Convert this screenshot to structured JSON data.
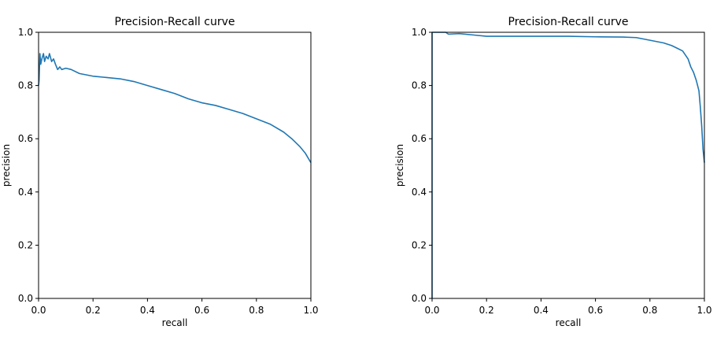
{
  "chart_data": [
    {
      "type": "line",
      "title": "Precision-Recall curve",
      "xlabel": "recall",
      "ylabel": "precision",
      "xlim": [
        0.0,
        1.0
      ],
      "ylim": [
        0.0,
        1.0
      ],
      "xticks": [
        "0.0",
        "0.2",
        "0.4",
        "0.6",
        "0.8",
        "1.0"
      ],
      "yticks": [
        "0.0",
        "0.2",
        "0.4",
        "0.6",
        "0.8",
        "1.0"
      ],
      "grid": false,
      "color": "#1f77b4",
      "series": [
        {
          "x": [
            0.0,
            0.002,
            0.005,
            0.008,
            0.012,
            0.018,
            0.022,
            0.028,
            0.035,
            0.04,
            0.048,
            0.055,
            0.062,
            0.07,
            0.078,
            0.085,
            0.1,
            0.12,
            0.15,
            0.2,
            0.25,
            0.3,
            0.35,
            0.4,
            0.45,
            0.5,
            0.55,
            0.6,
            0.65,
            0.7,
            0.75,
            0.8,
            0.85,
            0.9,
            0.93,
            0.96,
            0.98,
            1.0
          ],
          "y": [
            0.8,
            0.82,
            0.92,
            0.88,
            0.9,
            0.92,
            0.89,
            0.91,
            0.9,
            0.92,
            0.89,
            0.9,
            0.88,
            0.86,
            0.87,
            0.86,
            0.865,
            0.86,
            0.845,
            0.835,
            0.83,
            0.825,
            0.815,
            0.8,
            0.785,
            0.77,
            0.75,
            0.735,
            0.725,
            0.71,
            0.695,
            0.675,
            0.655,
            0.625,
            0.6,
            0.57,
            0.545,
            0.51
          ]
        }
      ]
    },
    {
      "type": "line",
      "title": "Precision-Recall curve",
      "xlabel": "recall",
      "ylabel": "precision",
      "xlim": [
        0.0,
        1.0
      ],
      "ylim": [
        0.0,
        1.0
      ],
      "xticks": [
        "0.0",
        "0.2",
        "0.4",
        "0.6",
        "0.8",
        "1.0"
      ],
      "yticks": [
        "0.0",
        "0.2",
        "0.4",
        "0.6",
        "0.8",
        "1.0"
      ],
      "grid": false,
      "color": "#1f77b4",
      "series": [
        {
          "x": [
            0.0,
            0.0,
            0.01,
            0.03,
            0.05,
            0.06,
            0.1,
            0.15,
            0.2,
            0.3,
            0.4,
            0.5,
            0.6,
            0.7,
            0.75,
            0.8,
            0.85,
            0.88,
            0.9,
            0.92,
            0.94,
            0.95,
            0.96,
            0.97,
            0.98,
            0.985,
            0.99,
            0.995,
            1.0
          ],
          "y": [
            0.0,
            1.0,
            1.0,
            1.0,
            1.0,
            0.993,
            0.995,
            0.99,
            0.985,
            0.985,
            0.985,
            0.985,
            0.983,
            0.982,
            0.98,
            0.97,
            0.96,
            0.95,
            0.94,
            0.93,
            0.9,
            0.87,
            0.85,
            0.82,
            0.78,
            0.72,
            0.65,
            0.56,
            0.51
          ]
        }
      ]
    }
  ]
}
